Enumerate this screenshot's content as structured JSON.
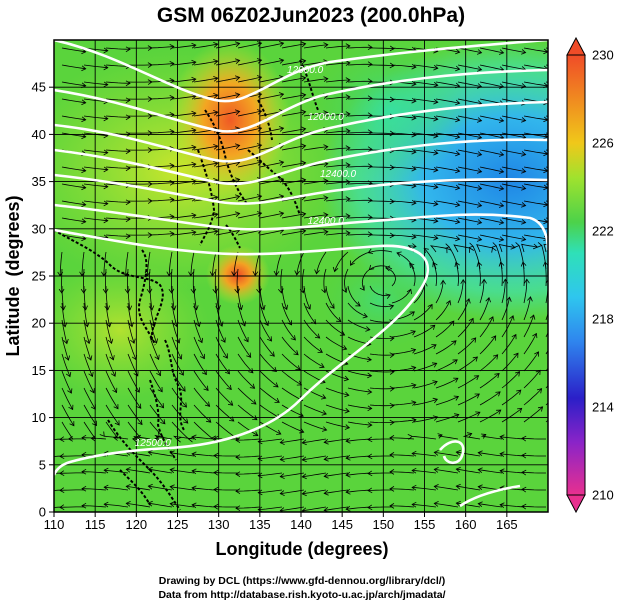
{
  "chart_data": {
    "type": "heatmap",
    "title": "GSM 06Z02Jun2023 (200.0hPa)",
    "xlabel": "Longitude (degrees)",
    "ylabel": "Latitude  (degrees)",
    "xlim": [
      110,
      170
    ],
    "ylim": [
      0,
      50
    ],
    "x_ticks": [
      "110",
      "115",
      "120",
      "125",
      "130",
      "135",
      "140",
      "145",
      "150",
      "155",
      "160",
      "165"
    ],
    "y_ticks": [
      "0",
      "5",
      "10",
      "15",
      "20",
      "25",
      "30",
      "35",
      "40",
      "45"
    ],
    "colorbar": {
      "min": 210,
      "max": 230,
      "labels": [
        "210",
        "214",
        "218",
        "222",
        "226",
        "230"
      ],
      "colors": [
        "#e8308f",
        "#2b1fc8",
        "#2fa8f0",
        "#2fe0c8",
        "#4cd24a",
        "#b2e62a",
        "#f0b81a",
        "#f04c28"
      ]
    },
    "contour_labels": [
      {
        "text": "12000.0",
        "lon": 140.5,
        "lat": 46.5
      },
      {
        "text": "12000.0",
        "lon": 143.0,
        "lat": 41.5
      },
      {
        "text": "12400.0",
        "lon": 144.5,
        "lat": 35.5
      },
      {
        "text": "12400.0",
        "lon": 143.0,
        "lat": 30.5
      },
      {
        "text": "12500.0",
        "lon": 122.0,
        "lat": 7.0
      }
    ],
    "grid": true,
    "overlay": "streamlines"
  },
  "credits": {
    "line1": "Drawing by DCL (https://www.gfd-dennou.org/library/dcl/)",
    "line2": "Data from http://database.rish.kyoto-u.ac.jp/arch/jmadata/"
  }
}
